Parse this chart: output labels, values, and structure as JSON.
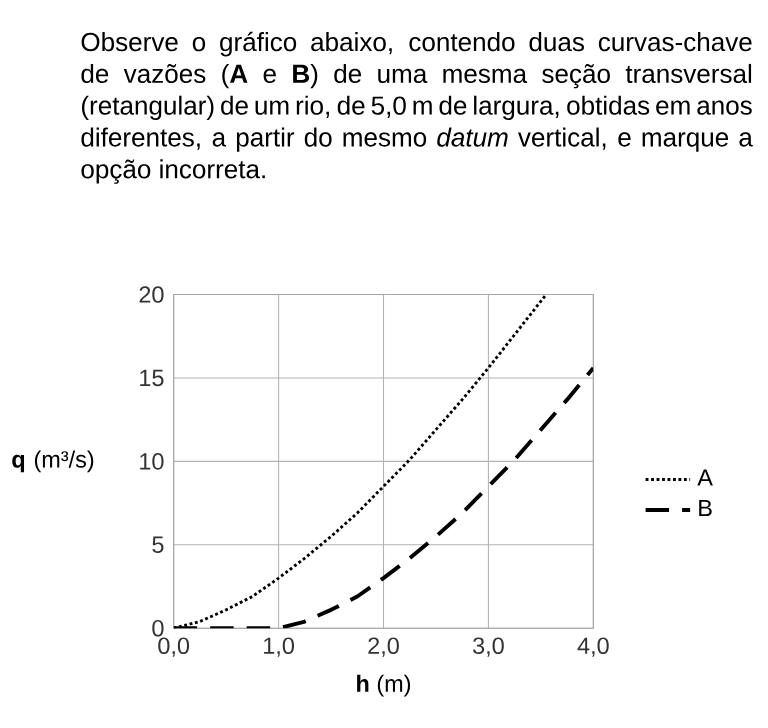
{
  "chart_data": {
    "type": "line",
    "title": "Observe o gráfico abaixo, contendo duas curvas-chave de vazões (**A** e **B**) de uma mesma seção transversal (retangular) de um rio, de 5,0 m de largura, obtidas em anos diferentes, a partir do mesmo *datum* vertical, e marque a opção incorreta.",
    "xlabel": "**h** (m)",
    "ylabel": "**q** (m³/s)",
    "xlim": [
      0,
      4
    ],
    "ylim": [
      0,
      20
    ],
    "xticks": [
      {
        "value": 0,
        "label": "0,0"
      },
      {
        "value": 1,
        "label": "1,0"
      },
      {
        "value": 2,
        "label": "2,0"
      },
      {
        "value": 3,
        "label": "3,0"
      },
      {
        "value": 4,
        "label": "4,0"
      }
    ],
    "yticks": [
      0,
      5,
      10,
      15,
      20
    ],
    "grid": true,
    "legend": "right",
    "series": [
      {
        "name": "A",
        "color": "#000000",
        "line_style": "dotted",
        "x": [
          0,
          0.25,
          0.5,
          0.75,
          1,
          1.25,
          1.5,
          1.75,
          2,
          2.25,
          2.5,
          2.75,
          3,
          3.25,
          3.55
        ],
        "values": [
          0,
          0.4,
          1.1,
          1.9,
          3,
          4.2,
          5.5,
          6.9,
          8.5,
          10.1,
          11.9,
          13.7,
          15.6,
          17.6,
          20
        ]
      },
      {
        "name": "B",
        "color": "#000000",
        "line_style": "dashed",
        "x": [
          0,
          0.5,
          1,
          1.25,
          1.5,
          1.75,
          2,
          2.25,
          2.5,
          2.75,
          3,
          3.25,
          3.5,
          3.75,
          4
        ],
        "values": [
          0,
          0,
          0,
          0.4,
          1.1,
          1.9,
          3,
          4.2,
          5.5,
          6.9,
          8.5,
          10.1,
          11.9,
          13.7,
          15.6
        ]
      }
    ]
  }
}
